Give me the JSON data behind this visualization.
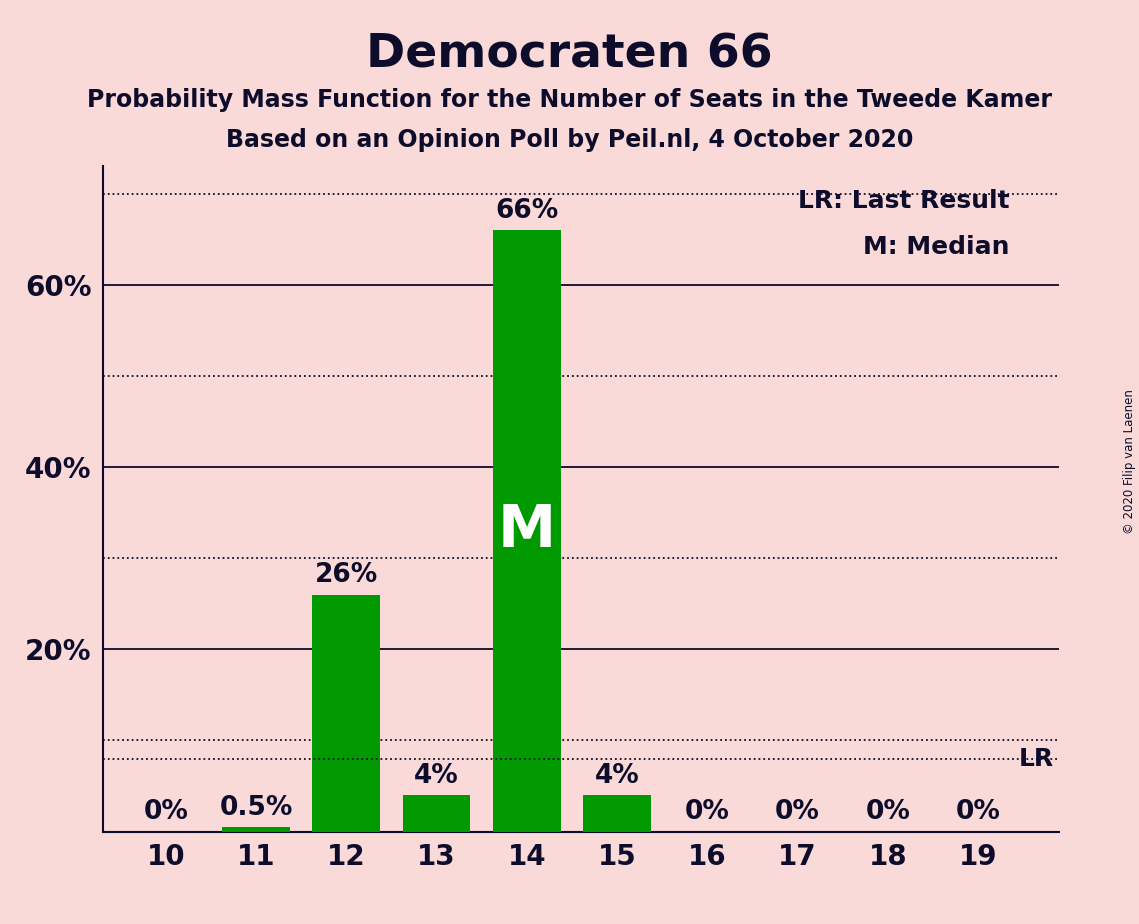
{
  "title": "Democraten 66",
  "subtitle1": "Probability Mass Function for the Number of Seats in the Tweede Kamer",
  "subtitle2": "Based on an Opinion Poll by Peil.nl, 4 October 2020",
  "copyright": "© 2020 Filip van Laenen",
  "seats": [
    10,
    11,
    12,
    13,
    14,
    15,
    16,
    17,
    18,
    19
  ],
  "probabilities": [
    0.0,
    0.5,
    26.0,
    4.0,
    66.0,
    4.0,
    0.0,
    0.0,
    0.0,
    0.0
  ],
  "bar_labels": [
    "0%",
    "0.5%",
    "26%",
    "4%",
    "66%",
    "4%",
    "0%",
    "0%",
    "0%",
    "0%"
  ],
  "bar_color": "#009900",
  "background_color": "#FAD9D9",
  "text_color": "#0D0D2B",
  "median_seat": 14,
  "median_label": "M",
  "last_result_pct": 8.0,
  "last_result_label": "LR",
  "solid_gridlines": [
    20,
    40,
    60
  ],
  "dotted_gridlines": [
    10,
    30,
    50,
    70
  ],
  "ylim": [
    0,
    73
  ],
  "title_fontsize": 34,
  "subtitle_fontsize": 17,
  "tick_fontsize": 20,
  "bar_label_fontsize": 19,
  "legend_fontsize": 18,
  "median_fontsize": 42
}
